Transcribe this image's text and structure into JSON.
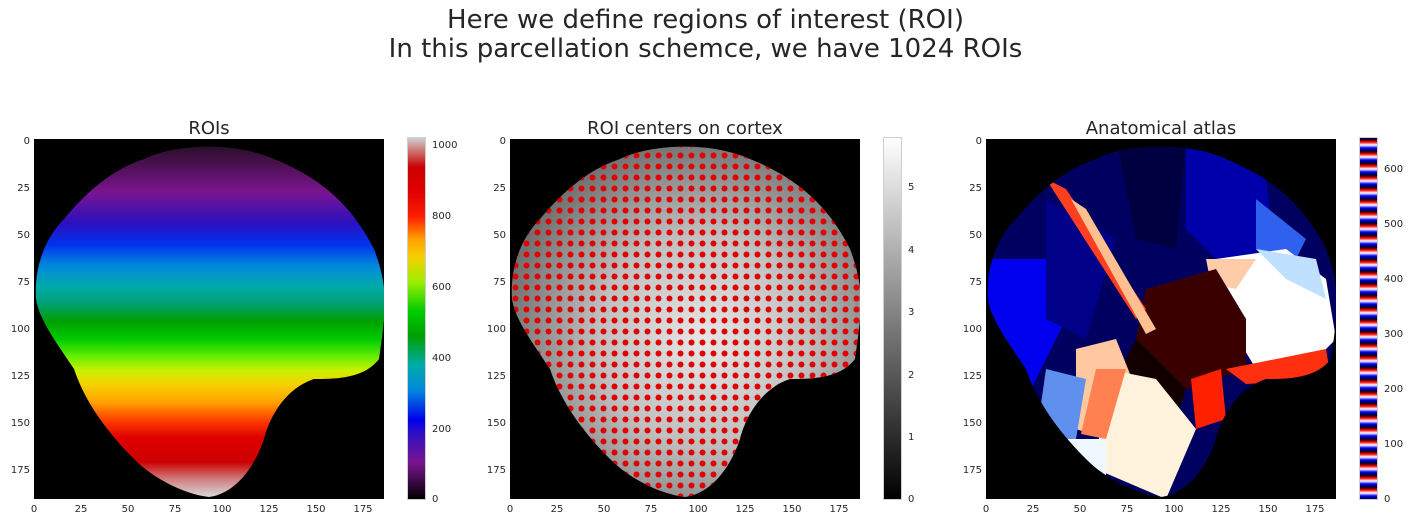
{
  "suptitle": {
    "line1": "Here we define regions of interest (ROI)",
    "line2": "In this parcellation schemce, we have 1024 ROIs"
  },
  "panels": [
    {
      "title": "ROIs",
      "y_ticks": [
        "0",
        "25",
        "50",
        "75",
        "100",
        "125",
        "150",
        "175"
      ],
      "x_ticks": [
        "0",
        "25",
        "50",
        "75",
        "100",
        "125",
        "150",
        "175"
      ],
      "colorbar_ticks": [
        "0",
        "200",
        "400",
        "600",
        "800",
        "1000"
      ],
      "colormap": "nipy_spectral"
    },
    {
      "title": "ROI centers on cortex",
      "y_ticks": [
        "0",
        "25",
        "50",
        "75",
        "100",
        "125",
        "150",
        "175"
      ],
      "x_ticks": [
        "0",
        "25",
        "50",
        "75",
        "100",
        "125",
        "150",
        "175"
      ],
      "colorbar_ticks": [
        "0",
        "1",
        "2",
        "3",
        "4",
        "5"
      ],
      "colormap": "gray",
      "marker_color": "#e00000"
    },
    {
      "title": "Anatomical atlas",
      "y_ticks": [
        "0",
        "25",
        "50",
        "75",
        "100",
        "125",
        "150",
        "175"
      ],
      "x_ticks": [
        "0",
        "25",
        "50",
        "75",
        "100",
        "125",
        "150",
        "175"
      ],
      "colorbar_ticks": [
        "0",
        "100",
        "200",
        "300",
        "400",
        "500",
        "600"
      ],
      "colormap": "flag-like blue/white/red"
    }
  ]
}
